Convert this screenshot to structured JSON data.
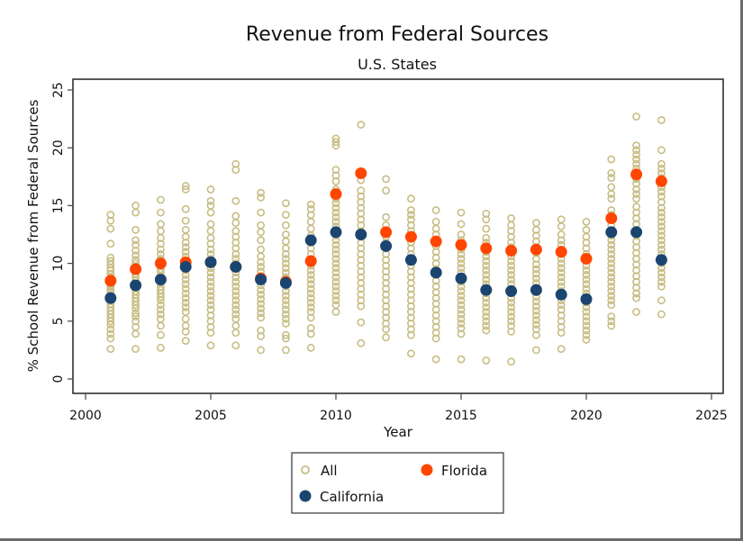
{
  "chart_data": {
    "type": "scatter",
    "title": "Revenue from Federal Sources",
    "subtitle": "U.S. States",
    "xlabel": "Year",
    "ylabel": "% School Revenue from Federal Sources",
    "xlim": [
      2000,
      2025
    ],
    "ylim": [
      0,
      25
    ],
    "xticks": [
      2000,
      2005,
      2010,
      2015,
      2020,
      2025
    ],
    "yticks": [
      0,
      5,
      10,
      15,
      20,
      25
    ],
    "grid": false,
    "legend": {
      "placement": "bottom",
      "entries": [
        {
          "name": "All",
          "marker": "hollow-circle",
          "color": "#c8bd84"
        },
        {
          "name": "Florida",
          "marker": "filled-circle",
          "color": "#ff4500"
        },
        {
          "name": "California",
          "marker": "filled-circle",
          "color": "#1a4570"
        }
      ]
    },
    "colors": {
      "all": "#c8bd84",
      "florida": "#ff4500",
      "california": "#1a4570"
    },
    "x": [
      2001,
      2002,
      2003,
      2004,
      2005,
      2006,
      2007,
      2008,
      2009,
      2010,
      2011,
      2012,
      2013,
      2014,
      2015,
      2016,
      2017,
      2018,
      2019,
      2020,
      2021,
      2022,
      2023
    ],
    "series": [
      {
        "name": "Florida",
        "values": [
          8.5,
          9.5,
          10.0,
          10.1,
          10.1,
          9.7,
          8.7,
          8.4,
          10.2,
          16.0,
          17.8,
          12.7,
          12.3,
          11.9,
          11.6,
          11.3,
          11.1,
          11.2,
          11.0,
          10.4,
          13.9,
          17.7,
          17.1
        ]
      },
      {
        "name": "California",
        "values": [
          7.0,
          8.1,
          8.6,
          9.7,
          10.1,
          9.7,
          8.6,
          8.3,
          12.0,
          12.7,
          12.5,
          11.5,
          10.3,
          9.2,
          8.7,
          7.7,
          7.6,
          7.7,
          7.3,
          6.9,
          12.7,
          12.7,
          10.3
        ]
      },
      {
        "name": "All",
        "values_by_year": {
          "2001": [
            2.6,
            3.5,
            3.9,
            4.3,
            4.7,
            5.0,
            5.3,
            5.6,
            5.9,
            6.2,
            6.5,
            6.8,
            7.0,
            7.2,
            7.5,
            7.7,
            7.9,
            8.1,
            8.3,
            8.6,
            8.8,
            9.1,
            9.4,
            9.6,
            9.9,
            10.2,
            10.5,
            11.7,
            13.0,
            13.7,
            14.2
          ],
          "2002": [
            2.6,
            3.9,
            4.5,
            5.0,
            5.4,
            5.7,
            6.1,
            6.4,
            6.7,
            7.0,
            7.3,
            7.6,
            7.9,
            8.2,
            8.5,
            8.8,
            9.1,
            9.4,
            9.7,
            10.0,
            10.3,
            10.7,
            11.1,
            11.6,
            12.0,
            12.9,
            14.4,
            15.0
          ],
          "2003": [
            2.7,
            3.8,
            4.6,
            5.2,
            5.6,
            6.0,
            6.4,
            6.8,
            7.1,
            7.4,
            7.7,
            8.0,
            8.3,
            8.6,
            8.9,
            9.2,
            9.5,
            9.8,
            10.1,
            10.4,
            10.8,
            11.2,
            11.7,
            12.2,
            12.8,
            13.4,
            14.4,
            15.5
          ],
          "2004": [
            3.3,
            4.1,
            4.6,
            5.2,
            5.8,
            6.2,
            6.6,
            7.0,
            7.4,
            7.8,
            8.2,
            8.6,
            9.0,
            9.4,
            9.8,
            10.2,
            10.6,
            11.0,
            11.4,
            11.8,
            12.3,
            12.9,
            13.7,
            14.7,
            16.4,
            16.7
          ],
          "2005": [
            2.9,
            4.0,
            4.5,
            5.0,
            5.5,
            6.0,
            6.4,
            6.8,
            7.2,
            7.6,
            8.0,
            8.4,
            8.8,
            9.2,
            9.6,
            10.0,
            10.4,
            10.8,
            11.2,
            11.7,
            12.2,
            12.8,
            13.4,
            14.4,
            15.0,
            15.4,
            16.4
          ],
          "2006": [
            2.9,
            4.0,
            4.6,
            5.2,
            5.6,
            6.0,
            6.4,
            6.8,
            7.2,
            7.6,
            8.0,
            8.4,
            8.8,
            9.2,
            9.6,
            10.0,
            10.4,
            10.8,
            11.3,
            11.8,
            12.3,
            12.8,
            13.5,
            14.1,
            15.4,
            18.1,
            18.6
          ],
          "2007": [
            2.5,
            3.7,
            4.2,
            5.3,
            5.7,
            6.1,
            6.5,
            6.9,
            7.3,
            7.7,
            8.1,
            8.5,
            8.9,
            9.3,
            9.7,
            10.1,
            10.6,
            11.2,
            12.0,
            12.7,
            13.3,
            14.4,
            15.7,
            16.1
          ],
          "2008": [
            2.5,
            3.5,
            3.8,
            4.8,
            5.2,
            5.6,
            6.0,
            6.4,
            6.8,
            7.2,
            7.6,
            8.0,
            8.4,
            8.8,
            9.2,
            9.6,
            10.0,
            10.4,
            10.8,
            11.3,
            11.9,
            12.5,
            13.3,
            14.2,
            15.2
          ],
          "2009": [
            2.7,
            3.9,
            4.4,
            5.3,
            5.8,
            6.2,
            6.6,
            7.0,
            7.4,
            7.8,
            8.2,
            8.6,
            9.0,
            9.4,
            9.8,
            10.3,
            10.8,
            11.3,
            11.8,
            12.4,
            13.0,
            13.6,
            14.2,
            14.7,
            15.1
          ],
          "2010": [
            5.8,
            6.4,
            6.8,
            7.2,
            7.6,
            8.0,
            8.4,
            8.8,
            9.2,
            9.6,
            10.0,
            10.4,
            10.8,
            11.2,
            11.6,
            12.0,
            12.4,
            12.8,
            13.2,
            13.6,
            14.0,
            14.4,
            14.8,
            15.2,
            15.6,
            16.4,
            17.1,
            17.6,
            18.1,
            20.2,
            20.5,
            20.8
          ],
          "2011": [
            3.1,
            4.9,
            6.3,
            6.8,
            7.3,
            7.8,
            8.3,
            8.8,
            9.3,
            9.8,
            10.3,
            10.8,
            11.3,
            11.8,
            12.3,
            12.8,
            13.3,
            13.8,
            14.3,
            14.8,
            15.3,
            15.8,
            16.3,
            17.2,
            22.0
          ],
          "2012": [
            3.6,
            4.3,
            4.8,
            5.3,
            5.8,
            6.3,
            6.8,
            7.3,
            7.8,
            8.3,
            8.8,
            9.3,
            9.8,
            10.3,
            10.8,
            11.3,
            11.8,
            12.3,
            12.8,
            13.3,
            14.0,
            16.3,
            17.3
          ],
          "2013": [
            2.2,
            3.8,
            4.3,
            4.8,
            5.3,
            5.8,
            6.3,
            6.8,
            7.3,
            7.8,
            8.3,
            8.8,
            9.3,
            9.8,
            10.3,
            10.8,
            11.3,
            11.8,
            12.3,
            12.8,
            13.3,
            13.8,
            14.2,
            14.6,
            15.6
          ],
          "2014": [
            1.7,
            3.5,
            4.0,
            4.5,
            5.0,
            5.5,
            6.0,
            6.5,
            7.0,
            7.5,
            8.0,
            8.5,
            9.0,
            9.5,
            10.0,
            10.5,
            11.0,
            11.5,
            12.0,
            12.5,
            13.0,
            13.6,
            14.6
          ],
          "2015": [
            1.7,
            3.9,
            4.4,
            4.8,
            5.2,
            5.6,
            6.0,
            6.4,
            6.8,
            7.2,
            7.6,
            8.0,
            8.4,
            8.8,
            9.2,
            9.6,
            10.0,
            10.4,
            10.8,
            11.2,
            11.6,
            12.0,
            12.5,
            13.4,
            14.4
          ],
          "2016": [
            1.6,
            4.2,
            4.6,
            5.0,
            5.4,
            5.8,
            6.2,
            6.6,
            7.0,
            7.4,
            7.8,
            8.2,
            8.6,
            9.0,
            9.4,
            9.8,
            10.2,
            10.6,
            11.0,
            11.4,
            11.8,
            12.2,
            13.0,
            13.8,
            14.3
          ],
          "2017": [
            1.5,
            4.1,
            4.6,
            5.0,
            5.4,
            5.8,
            6.2,
            6.6,
            7.0,
            7.4,
            7.8,
            8.2,
            8.6,
            9.0,
            9.4,
            9.8,
            10.2,
            10.6,
            11.0,
            11.4,
            11.8,
            12.3,
            12.8,
            13.3,
            13.9
          ],
          "2018": [
            2.5,
            3.8,
            4.3,
            4.7,
            5.1,
            5.5,
            5.9,
            6.3,
            6.7,
            7.1,
            7.5,
            7.9,
            8.3,
            8.7,
            9.1,
            9.5,
            9.9,
            10.4,
            10.9,
            11.4,
            11.9,
            12.4,
            12.9,
            13.5
          ],
          "2019": [
            2.6,
            4.0,
            4.5,
            5.0,
            5.5,
            6.0,
            6.4,
            6.8,
            7.2,
            7.6,
            8.0,
            8.4,
            8.8,
            9.2,
            9.6,
            10.0,
            10.4,
            10.8,
            11.2,
            11.6,
            12.0,
            12.5,
            13.2,
            13.8
          ],
          "2020": [
            3.4,
            3.8,
            4.2,
            4.6,
            5.0,
            5.4,
            5.8,
            6.2,
            6.6,
            7.0,
            7.4,
            7.8,
            8.2,
            8.6,
            9.0,
            9.4,
            9.8,
            10.3,
            10.8,
            11.3,
            11.8,
            12.3,
            12.9,
            13.6
          ],
          "2021": [
            4.6,
            5.0,
            5.4,
            6.4,
            6.8,
            7.2,
            7.6,
            8.0,
            8.4,
            8.8,
            9.2,
            9.6,
            10.0,
            10.4,
            10.8,
            11.2,
            11.6,
            12.0,
            12.4,
            12.8,
            13.3,
            14.2,
            14.6,
            15.6,
            16.0,
            16.6,
            17.4,
            17.8,
            19.0
          ],
          "2022": [
            5.8,
            7.0,
            7.4,
            7.9,
            8.4,
            8.9,
            9.4,
            9.9,
            10.4,
            10.9,
            11.4,
            11.9,
            12.4,
            12.9,
            13.4,
            13.9,
            14.4,
            14.9,
            15.6,
            16.0,
            16.4,
            16.9,
            17.3,
            17.7,
            18.2,
            18.6,
            19.0,
            19.4,
            19.8,
            20.2,
            22.7
          ],
          "2023": [
            5.6,
            6.8,
            8.0,
            8.4,
            8.8,
            9.2,
            9.6,
            10.0,
            10.4,
            10.8,
            11.2,
            11.6,
            12.0,
            12.4,
            12.8,
            13.2,
            13.6,
            14.0,
            14.4,
            14.8,
            15.3,
            15.8,
            16.2,
            16.6,
            17.0,
            17.4,
            17.8,
            18.2,
            18.6,
            19.8,
            22.4
          ]
        }
      }
    ]
  }
}
